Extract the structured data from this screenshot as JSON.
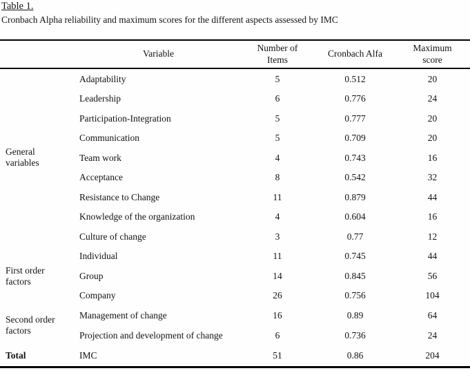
{
  "page": {
    "title": "Table 1.",
    "caption": "Cronbach Alpha reliability and maximum scores for the different aspects assessed by IMC"
  },
  "table": {
    "headers": {
      "group": "",
      "variable": "Variable",
      "num_items": "Number of\nItems",
      "cronbach": "Cronbach Alfa",
      "max_score": "Maximum\nscore"
    },
    "groups": [
      {
        "label": "General variables",
        "bold": false,
        "rows": [
          {
            "variable": "Adaptability",
            "items": "5",
            "cronbach": "0.512",
            "max": "20"
          },
          {
            "variable": "Leadership",
            "items": "6",
            "cronbach": "0.776",
            "max": "24"
          },
          {
            "variable": "Participation-Integration",
            "items": "5",
            "cronbach": "0.777",
            "max": "20"
          },
          {
            "variable": "Communication",
            "items": "5",
            "cronbach": "0.709",
            "max": "20"
          },
          {
            "variable": "Team work",
            "items": "4",
            "cronbach": "0.743",
            "max": "16"
          },
          {
            "variable": "Acceptance",
            "items": "8",
            "cronbach": "0.542",
            "max": "32"
          },
          {
            "variable": "Resistance to Change",
            "items": "11",
            "cronbach": "0.879",
            "max": "44"
          },
          {
            "variable": "Knowledge of the organization",
            "items": "4",
            "cronbach": "0.604",
            "max": "16"
          },
          {
            "variable": "Culture of change",
            "items": "3",
            "cronbach": "0.77",
            "max": "12"
          }
        ]
      },
      {
        "label": "First order factors",
        "bold": false,
        "rows": [
          {
            "variable": "Individual",
            "items": "11",
            "cronbach": "0.745",
            "max": "44"
          },
          {
            "variable": "Group",
            "items": "14",
            "cronbach": "0.845",
            "max": "56"
          },
          {
            "variable": "Company",
            "items": "26",
            "cronbach": "0.756",
            "max": "104"
          }
        ]
      },
      {
        "label": "Second order factors",
        "bold": false,
        "rows": [
          {
            "variable": "Management of change",
            "items": "16",
            "cronbach": "0.89",
            "max": "64"
          },
          {
            "variable": "Projection and development of change",
            "items": "6",
            "cronbach": "0.736",
            "max": "24"
          }
        ]
      },
      {
        "label": "Total",
        "bold": true,
        "rows": [
          {
            "variable": "IMC",
            "items": "51",
            "cronbach": "0.86",
            "max": "204"
          }
        ]
      }
    ],
    "colors": {
      "text": "#121212",
      "rule": "#000000",
      "background": "#fefefe"
    }
  }
}
